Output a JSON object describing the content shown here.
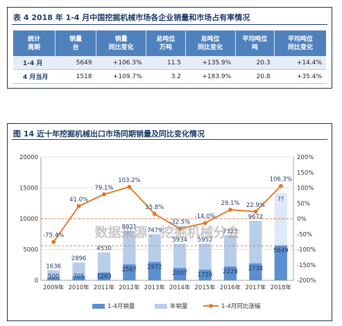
{
  "table": {
    "title": "表 4    2018 年 1-4 月中国挖掘机械市场各企业销量和市场占有率情况",
    "headers": [
      [
        "统计",
        "周期"
      ],
      [
        "销量",
        "台"
      ],
      [
        "销量",
        "同比变化"
      ],
      [
        "总吨位",
        "万吨"
      ],
      [
        "总吨位",
        "同比变化"
      ],
      [
        "平均吨位",
        "吨"
      ],
      [
        "平均吨位",
        "同比变化"
      ]
    ],
    "rows": [
      [
        "1-4 月",
        "5649",
        "+106.3%",
        "11.5",
        "+135.9%",
        "20.3",
        "+14.4%"
      ],
      [
        "4 月当月",
        "1518",
        "+109.7%",
        "3.2",
        "+183.9%",
        "20.8",
        "+35.4%"
      ]
    ]
  },
  "chart_data": {
    "type": "bar",
    "title": "图 14    近十年挖掘机械出口市场同期销量及同比变化情况",
    "categories": [
      "2009年",
      "2010年",
      "2011年",
      "2012年",
      "2013年",
      "2014年",
      "2015年",
      "2016年",
      "2017年",
      "2018年"
    ],
    "y_left_ticks": [
      "0",
      "5000",
      "10000",
      "15000",
      "20000"
    ],
    "y_right_ticks": [
      "-200%",
      "-150%",
      "-100%",
      "-50%",
      "0%",
      "50%",
      "100%",
      "150%",
      "200%"
    ],
    "ylim_left": [
      0,
      20000
    ],
    "ylim_right": [
      -200,
      200
    ],
    "series": [
      {
        "name": "1-4月销量",
        "type": "bar",
        "color": "#5b8fd0",
        "values": [
          500,
          705,
          1263,
          2567,
          2972,
          2007,
          1726,
          2228,
          2738,
          5649
        ],
        "labels": [
          "500",
          "705",
          "1263",
          "2567",
          "2972",
          "2007",
          "1726",
          "2228",
          "2738",
          "5649"
        ]
      },
      {
        "name": "年销量",
        "type": "bar",
        "color": "#b8cdea",
        "values": [
          1636,
          2896,
          4530,
          8021,
          7479,
          5934,
          5952,
          7327,
          9672,
          null
        ],
        "labels": [
          "1636",
          "2896",
          "4530",
          "8021",
          "7479",
          "5934",
          "5952",
          "7327",
          "9672",
          "??"
        ]
      },
      {
        "name": "1-4月同比涨幅",
        "type": "line",
        "axis": "right",
        "color": "#e07b2e",
        "values": [
          -75.4,
          41.0,
          79.1,
          103.2,
          15.8,
          -32.5,
          -14.0,
          29.1,
          22.9,
          106.3
        ],
        "labels": [
          "-75.4%",
          "41.0%",
          "79.1%",
          "103.2%",
          "15.8%",
          "-32.5%",
          "-14.0%",
          "29.1%",
          "22.9%",
          "106.3%"
        ]
      }
    ],
    "reference_lines": [
      {
        "axis": "left",
        "value": 10000,
        "color": "#e07b2e"
      },
      {
        "axis": "left",
        "value": 5600,
        "color": "#e07b2e"
      }
    ],
    "watermark": "数据来源：挖掘机械分会",
    "legend_position": "bottom"
  }
}
